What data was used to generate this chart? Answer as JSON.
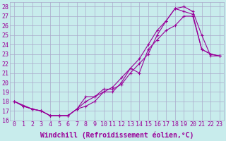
{
  "xlabel": "Windchill (Refroidissement éolien,°C)",
  "bg_color": "#c8ecec",
  "line_color": "#990099",
  "grid_color": "#aaaacc",
  "xlim": [
    -0.5,
    23.5
  ],
  "ylim": [
    16,
    28.5
  ],
  "xticks": [
    0,
    1,
    2,
    3,
    4,
    5,
    6,
    7,
    8,
    9,
    10,
    11,
    12,
    13,
    14,
    15,
    16,
    17,
    18,
    19,
    20,
    21,
    22,
    23
  ],
  "yticks": [
    16,
    17,
    18,
    19,
    20,
    21,
    22,
    23,
    24,
    25,
    26,
    27,
    28
  ],
  "line1_x": [
    0,
    1,
    2,
    3,
    4,
    5,
    6,
    7,
    8,
    9,
    10,
    11,
    12,
    13,
    14,
    15,
    16,
    17,
    18,
    19,
    20,
    21,
    22,
    23
  ],
  "line1_y": [
    18.0,
    17.5,
    17.2,
    17.0,
    16.5,
    16.5,
    16.5,
    17.2,
    18.0,
    18.5,
    19.0,
    19.5,
    20.5,
    21.5,
    22.5,
    24.0,
    25.5,
    26.5,
    27.8,
    28.0,
    27.5,
    25.0,
    22.8,
    22.8
  ],
  "line2_x": [
    0,
    1,
    2,
    3,
    4,
    5,
    6,
    7,
    8,
    9,
    10,
    11,
    12,
    13,
    14,
    15,
    16,
    17,
    18,
    19,
    20,
    21,
    22,
    23
  ],
  "line2_y": [
    18.0,
    17.5,
    17.2,
    17.0,
    16.5,
    16.5,
    16.5,
    17.2,
    17.5,
    18.0,
    19.0,
    19.0,
    20.0,
    21.5,
    21.0,
    23.5,
    24.5,
    25.5,
    26.0,
    27.0,
    27.0,
    23.5,
    23.0,
    22.8
  ],
  "line3_x": [
    0,
    2,
    3,
    4,
    5,
    6,
    7,
    8,
    9,
    10,
    11,
    12,
    13,
    14,
    15,
    16,
    17,
    18,
    19,
    20,
    21,
    22,
    23
  ],
  "line3_y": [
    18.0,
    17.2,
    17.0,
    16.5,
    16.5,
    16.5,
    17.2,
    18.5,
    18.5,
    19.3,
    19.3,
    19.8,
    21.0,
    22.0,
    23.0,
    25.0,
    26.5,
    27.8,
    27.5,
    27.2,
    23.5,
    23.0,
    22.8
  ],
  "xlabel_fontsize": 7,
  "tick_fontsize": 6,
  "marker": "+"
}
